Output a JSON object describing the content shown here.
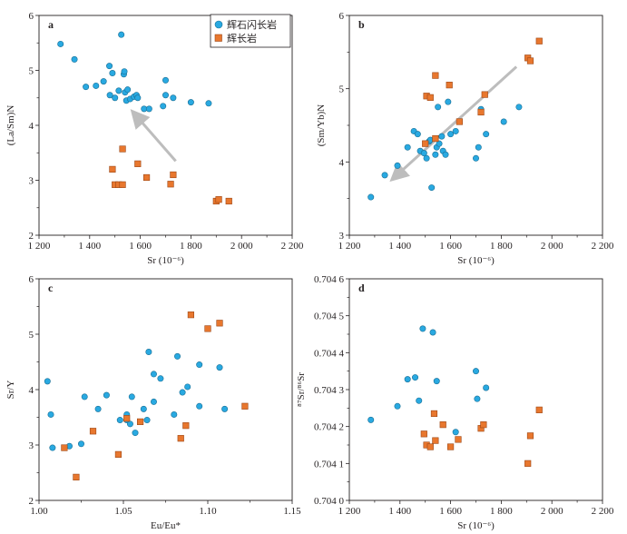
{
  "colors": {
    "series_a": "#29a9e1",
    "series_a_stroke": "#1a6f95",
    "series_b": "#e8772e",
    "series_b_stroke": "#9c4716",
    "arrow": "#bdbdbd",
    "axis": "#231f20"
  },
  "legend": {
    "position": "top-right",
    "items": [
      {
        "label": "辉石闪长岩",
        "marker": "circle"
      },
      {
        "label": "辉长岩",
        "marker": "square"
      }
    ]
  },
  "chart_data": [
    {
      "panel": "a",
      "type": "scatter",
      "xlabel": "Sr (10⁻⁶)",
      "ylabel": "(La/Sm)N",
      "xlim": [
        1200,
        2200
      ],
      "ylim": [
        2,
        6
      ],
      "xticks": [
        1200,
        1400,
        1600,
        1800,
        2000,
        2200
      ],
      "yticks": [
        2,
        3,
        4,
        5,
        6
      ],
      "xtick_labels": [
        "1 200",
        "1 400",
        "1 600",
        "1 800",
        "2 000",
        "2 200"
      ],
      "ytick_labels": [
        "2",
        "3",
        "4",
        "5",
        "6"
      ],
      "arrow": {
        "from": [
          1740,
          3.35
        ],
        "to": [
          1575,
          4.22
        ]
      },
      "series": [
        {
          "name": "辉石闪长岩",
          "marker": "circle",
          "points": [
            [
              1285,
              5.48
            ],
            [
              1340,
              5.2
            ],
            [
              1385,
              4.7
            ],
            [
              1425,
              4.72
            ],
            [
              1455,
              4.8
            ],
            [
              1478,
              5.08
            ],
            [
              1480,
              4.55
            ],
            [
              1490,
              4.95
            ],
            [
              1500,
              4.5
            ],
            [
              1515,
              4.63
            ],
            [
              1525,
              5.65
            ],
            [
              1535,
              4.93
            ],
            [
              1537,
              4.98
            ],
            [
              1540,
              4.6
            ],
            [
              1545,
              4.45
            ],
            [
              1550,
              4.65
            ],
            [
              1560,
              4.48
            ],
            [
              1575,
              4.52
            ],
            [
              1585,
              4.55
            ],
            [
              1590,
              4.5
            ],
            [
              1615,
              4.3
            ],
            [
              1635,
              4.3
            ],
            [
              1690,
              4.35
            ],
            [
              1700,
              4.82
            ],
            [
              1700,
              4.55
            ],
            [
              1730,
              4.5
            ],
            [
              1800,
              4.42
            ],
            [
              1870,
              4.4
            ]
          ]
        },
        {
          "name": "辉长岩",
          "marker": "square",
          "points": [
            [
              1490,
              3.2
            ],
            [
              1500,
              2.92
            ],
            [
              1515,
              2.92
            ],
            [
              1530,
              2.92
            ],
            [
              1530,
              3.57
            ],
            [
              1590,
              3.3
            ],
            [
              1625,
              3.05
            ],
            [
              1720,
              2.93
            ],
            [
              1730,
              3.1
            ],
            [
              1900,
              2.62
            ],
            [
              1910,
              2.65
            ],
            [
              1950,
              2.62
            ]
          ]
        }
      ]
    },
    {
      "panel": "b",
      "type": "scatter",
      "xlabel": "Sr (10⁻⁶)",
      "ylabel": "(Sm/Yb)N",
      "xlim": [
        1200,
        2200
      ],
      "ylim": [
        3,
        6
      ],
      "xticks": [
        1200,
        1400,
        1600,
        1800,
        2000,
        2200
      ],
      "yticks": [
        3,
        4,
        5,
        6
      ],
      "xtick_labels": [
        "1 200",
        "1 400",
        "1 600",
        "1 800",
        "2 000",
        "2 200"
      ],
      "ytick_labels": [
        "3",
        "4",
        "5",
        "6"
      ],
      "arrow": {
        "from": [
          1860,
          5.3
        ],
        "to": [
          1375,
          3.78
        ]
      },
      "series": [
        {
          "name": "辉石闪长岩",
          "marker": "circle",
          "points": [
            [
              1285,
              3.52
            ],
            [
              1340,
              3.82
            ],
            [
              1390,
              3.95
            ],
            [
              1430,
              4.2
            ],
            [
              1455,
              4.42
            ],
            [
              1470,
              4.38
            ],
            [
              1480,
              4.15
            ],
            [
              1495,
              4.12
            ],
            [
              1505,
              4.05
            ],
            [
              1515,
              4.28
            ],
            [
              1520,
              4.3
            ],
            [
              1525,
              3.65
            ],
            [
              1540,
              4.1
            ],
            [
              1545,
              4.2
            ],
            [
              1550,
              4.75
            ],
            [
              1555,
              4.25
            ],
            [
              1565,
              4.35
            ],
            [
              1570,
              4.15
            ],
            [
              1580,
              4.1
            ],
            [
              1590,
              4.82
            ],
            [
              1600,
              4.38
            ],
            [
              1620,
              4.42
            ],
            [
              1700,
              4.05
            ],
            [
              1710,
              4.2
            ],
            [
              1720,
              4.72
            ],
            [
              1740,
              4.38
            ],
            [
              1810,
              4.55
            ],
            [
              1870,
              4.75
            ]
          ]
        },
        {
          "name": "辉长岩",
          "marker": "square",
          "points": [
            [
              1500,
              4.25
            ],
            [
              1505,
              4.9
            ],
            [
              1520,
              4.88
            ],
            [
              1540,
              4.32
            ],
            [
              1540,
              5.18
            ],
            [
              1595,
              5.05
            ],
            [
              1635,
              4.55
            ],
            [
              1720,
              4.68
            ],
            [
              1735,
              4.92
            ],
            [
              1905,
              5.42
            ],
            [
              1915,
              5.38
            ],
            [
              1950,
              5.65
            ]
          ]
        }
      ]
    },
    {
      "panel": "c",
      "type": "scatter",
      "xlabel": "Eu/Eu*",
      "ylabel": "Sr/Y",
      "xlim": [
        1.0,
        1.15
      ],
      "ylim": [
        2,
        6
      ],
      "xticks": [
        1.0,
        1.05,
        1.1,
        1.15
      ],
      "yticks": [
        2,
        3,
        4,
        5,
        6
      ],
      "xtick_labels": [
        "1.00",
        "1.05",
        "1.10",
        "1.15"
      ],
      "ytick_labels": [
        "2",
        "3",
        "4",
        "5",
        "6"
      ],
      "series": [
        {
          "name": "辉石闪长岩",
          "marker": "circle",
          "points": [
            [
              1.005,
              4.15
            ],
            [
              1.007,
              3.55
            ],
            [
              1.008,
              2.95
            ],
            [
              1.018,
              2.98
            ],
            [
              1.025,
              3.02
            ],
            [
              1.027,
              3.87
            ],
            [
              1.035,
              3.65
            ],
            [
              1.04,
              3.9
            ],
            [
              1.048,
              3.45
            ],
            [
              1.052,
              3.45
            ],
            [
              1.052,
              3.55
            ],
            [
              1.054,
              3.38
            ],
            [
              1.055,
              3.87
            ],
            [
              1.057,
              3.22
            ],
            [
              1.062,
              3.65
            ],
            [
              1.064,
              3.45
            ],
            [
              1.065,
              4.68
            ],
            [
              1.068,
              3.78
            ],
            [
              1.068,
              4.28
            ],
            [
              1.072,
              4.2
            ],
            [
              1.08,
              3.55
            ],
            [
              1.082,
              4.6
            ],
            [
              1.085,
              3.95
            ],
            [
              1.088,
              4.05
            ],
            [
              1.095,
              3.7
            ],
            [
              1.095,
              4.45
            ],
            [
              1.107,
              4.4
            ],
            [
              1.11,
              3.65
            ]
          ]
        },
        {
          "name": "辉长岩",
          "marker": "square",
          "points": [
            [
              1.015,
              2.95
            ],
            [
              1.022,
              2.42
            ],
            [
              1.032,
              3.25
            ],
            [
              1.047,
              2.83
            ],
            [
              1.052,
              3.48
            ],
            [
              1.06,
              3.42
            ],
            [
              1.084,
              3.12
            ],
            [
              1.087,
              3.35
            ],
            [
              1.09,
              5.35
            ],
            [
              1.1,
              5.1
            ],
            [
              1.107,
              5.2
            ],
            [
              1.122,
              3.7
            ]
          ]
        }
      ]
    },
    {
      "panel": "d",
      "type": "scatter",
      "xlabel": "Sr (10⁻⁶)",
      "ylabel": "⁸⁷Sr/⁸⁶Sr",
      "xlim": [
        1200,
        2200
      ],
      "ylim": [
        0.704,
        0.7046
      ],
      "xticks": [
        1200,
        1400,
        1600,
        1800,
        2000,
        2200
      ],
      "yticks": [
        0.704,
        0.7041,
        0.7042,
        0.7043,
        0.7044,
        0.7045,
        0.7046
      ],
      "xtick_labels": [
        "1 200",
        "1 400",
        "1 600",
        "1 800",
        "2 000",
        "2 200"
      ],
      "ytick_labels": [
        "0.704 0",
        "0.704 1",
        "0.704 2",
        "0.704 3",
        "0.704 4",
        "0.704 5",
        "0.704 6"
      ],
      "series": [
        {
          "name": "辉石闪长岩",
          "marker": "circle",
          "points": [
            [
              1285,
              0.704218
            ],
            [
              1390,
              0.704255
            ],
            [
              1430,
              0.704328
            ],
            [
              1460,
              0.704333
            ],
            [
              1475,
              0.70427
            ],
            [
              1490,
              0.704465
            ],
            [
              1530,
              0.704455
            ],
            [
              1545,
              0.704323
            ],
            [
              1620,
              0.704185
            ],
            [
              1700,
              0.70435
            ],
            [
              1705,
              0.704275
            ],
            [
              1740,
              0.704305
            ]
          ]
        },
        {
          "name": "辉长岩",
          "marker": "square",
          "points": [
            [
              1495,
              0.70418
            ],
            [
              1505,
              0.70415
            ],
            [
              1520,
              0.704145
            ],
            [
              1535,
              0.704235
            ],
            [
              1540,
              0.704162
            ],
            [
              1570,
              0.704205
            ],
            [
              1600,
              0.704145
            ],
            [
              1630,
              0.704165
            ],
            [
              1720,
              0.704195
            ],
            [
              1730,
              0.704205
            ],
            [
              1905,
              0.7041
            ],
            [
              1915,
              0.704175
            ],
            [
              1950,
              0.704245
            ]
          ]
        }
      ]
    }
  ]
}
